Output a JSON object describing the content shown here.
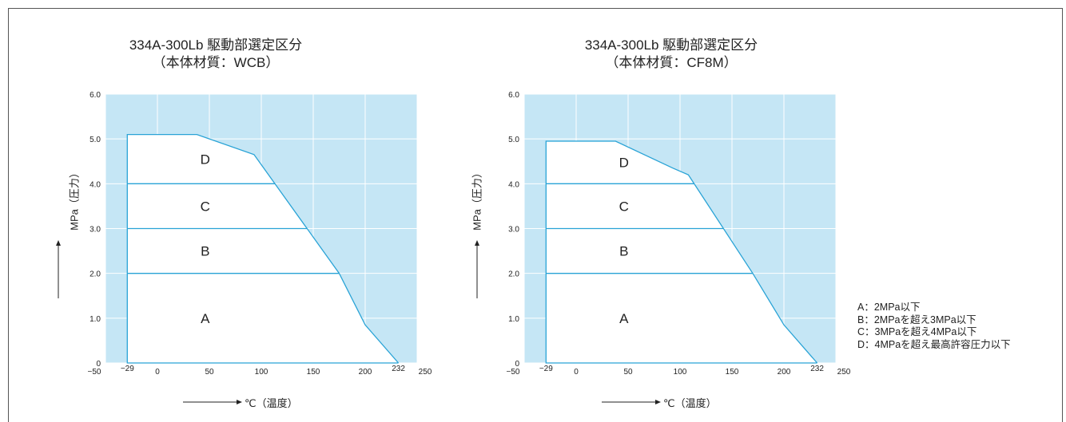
{
  "chart_data": [
    {
      "type": "area",
      "title": "334A-300Lb  駆動部選定区分",
      "subtitle": "（本体材質：WCB）",
      "xlabel": "℃（温度）",
      "ylabel": "MPa（圧力）",
      "xlim": [
        -50,
        250
      ],
      "ylim": [
        0,
        6.0
      ],
      "x_ticks": [
        "−50",
        "−29",
        "0",
        "50",
        "100",
        "150",
        "200",
        "232",
        "250"
      ],
      "y_ticks": [
        "0",
        "1.0",
        "2.0",
        "3.0",
        "4.0",
        "5.0",
        "6.0"
      ],
      "grid": true,
      "boundary": [
        [
          -29,
          5.1
        ],
        [
          38,
          5.1
        ],
        [
          93,
          4.65
        ],
        [
          175,
          2.0
        ],
        [
          200,
          0.85
        ],
        [
          232,
          0
        ]
      ],
      "zone_lines": [
        2.0,
        3.0,
        4.0
      ],
      "zones": [
        "A",
        "B",
        "C",
        "D"
      ]
    },
    {
      "type": "area",
      "title": "334A-300Lb  駆動部選定区分",
      "subtitle": "（本体材質：CF8M）",
      "xlabel": "℃（温度）",
      "ylabel": "MPa（圧力）",
      "xlim": [
        -50,
        250
      ],
      "ylim": [
        0,
        6.0
      ],
      "x_ticks": [
        "−50",
        "−29",
        "0",
        "50",
        "100",
        "150",
        "200",
        "232",
        "250"
      ],
      "y_ticks": [
        "0",
        "1.0",
        "2.0",
        "3.0",
        "4.0",
        "5.0",
        "6.0"
      ],
      "grid": true,
      "boundary": [
        [
          -29,
          4.95
        ],
        [
          38,
          4.95
        ],
        [
          93,
          4.35
        ],
        [
          108,
          4.2
        ],
        [
          170,
          2.0
        ],
        [
          200,
          0.85
        ],
        [
          232,
          0
        ]
      ],
      "zone_lines": [
        2.0,
        3.0,
        4.0
      ],
      "zones": [
        "A",
        "B",
        "C",
        "D"
      ]
    }
  ],
  "legend": [
    "A：2MPa以下",
    "B：2MPaを超え3MPa以下",
    "C：3MPaを超え4MPa以下",
    "D：4MPaを超え最高許容圧力以下"
  ],
  "colors": {
    "fill": "#c5e6f5",
    "line": "#29a3d6",
    "grid": "#ffffff"
  }
}
